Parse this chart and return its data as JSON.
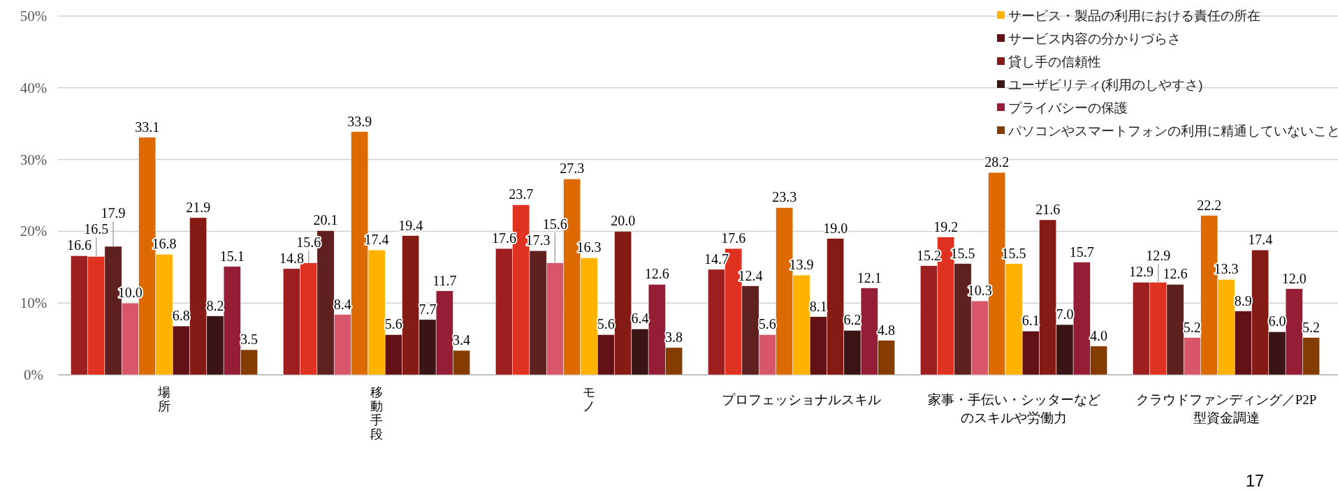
{
  "chart_data": {
    "type": "bar",
    "categories": [
      "場所",
      "移動手段",
      "モノ",
      "プロフェッショナルスキル",
      "家事・手伝い・シッターなどのスキルや労働力",
      "クラウドファンディング／P2P型資金調達"
    ],
    "series": [
      {
        "color": "#9e1f22",
        "values": [
          16.6,
          14.8,
          17.6,
          14.7,
          15.2,
          12.9
        ]
      },
      {
        "color": "#e03220",
        "values": [
          16.5,
          15.6,
          23.7,
          17.6,
          19.2,
          12.9
        ]
      },
      {
        "color": "#5f2020",
        "values": [
          17.9,
          20.1,
          17.3,
          12.4,
          15.5,
          12.6
        ]
      },
      {
        "color": "#d9556a",
        "values": [
          10.0,
          8.4,
          15.6,
          5.6,
          10.3,
          5.2
        ],
        "value_labels": [
          "10.0",
          "8.4",
          "15.6",
          "5.6",
          "10.3",
          "5.2"
        ]
      },
      {
        "color": "#dc6a00",
        "values": [
          33.1,
          33.9,
          27.3,
          23.3,
          28.2,
          22.2
        ]
      },
      {
        "name": "サービス・製品の利用における責任の所在",
        "color": "#ffb300",
        "values": [
          16.8,
          17.4,
          16.3,
          13.9,
          15.5,
          13.3
        ]
      },
      {
        "name": "サービス内容の分かりづらさ",
        "color": "#621217",
        "values": [
          6.8,
          5.6,
          5.6,
          8.1,
          6.1,
          8.9
        ]
      },
      {
        "name": "貸し手の信頼性",
        "color": "#841b14",
        "values": [
          21.9,
          19.4,
          20.0,
          19.0,
          21.6,
          17.4
        ],
        "value_labels": [
          "21.9",
          "19.4",
          "20.0",
          "19.0",
          "21.6",
          "17.4"
        ]
      },
      {
        "name": "ユーザビリティ(利用のしやすさ)",
        "color": "#3b1515",
        "values": [
          8.2,
          7.7,
          6.4,
          6.2,
          7.0,
          6.0
        ],
        "value_labels": [
          "8.2",
          "7.7",
          "6.4",
          "6.2",
          "7.0",
          "6.0"
        ]
      },
      {
        "name": "プライバシーの保護",
        "color": "#951d35",
        "values": [
          15.1,
          11.7,
          12.6,
          12.1,
          15.7,
          12.0
        ],
        "value_labels": [
          "15.1",
          "11.7",
          "12.6",
          "12.1",
          "15.7",
          "12.0"
        ]
      },
      {
        "name": "パソコンやスマートフォンの利用に精通していないこと",
        "color": "#843c00",
        "values": [
          3.5,
          3.4,
          3.8,
          4.8,
          4.0,
          5.2
        ],
        "value_labels": [
          "3.5",
          "3.4",
          "3.8",
          "4.8",
          "4.0",
          "5.2"
        ]
      }
    ],
    "ylim": [
      0,
      50
    ],
    "yticks": [
      {
        "value": 0,
        "label": "0%"
      },
      {
        "value": 10,
        "label": "10%"
      },
      {
        "value": 20,
        "label": "20%"
      },
      {
        "value": 30,
        "label": "30%"
      },
      {
        "value": 40,
        "label": "40%"
      },
      {
        "value": 50,
        "label": "50%"
      }
    ],
    "grid": "y",
    "legend": "top right",
    "data_labels": true,
    "annotations": [
      "17"
    ]
  }
}
